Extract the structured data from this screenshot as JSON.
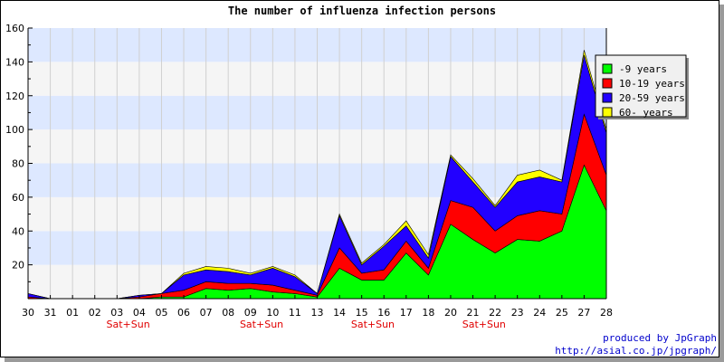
{
  "chart_data": {
    "type": "area",
    "stacked": true,
    "title": "The number of influenza infection persons",
    "xlabel": "",
    "ylabel": "",
    "ylim": [
      0,
      160
    ],
    "yticks": [
      20,
      40,
      60,
      80,
      100,
      120,
      140,
      160
    ],
    "grid": true,
    "legend_position": "top-right",
    "x": [
      "30",
      "31",
      "01",
      "02",
      "03",
      "04",
      "05",
      "06",
      "07",
      "08",
      "09",
      "10",
      "11",
      "13",
      "14",
      "15",
      "16",
      "17",
      "18",
      "20",
      "21",
      "22",
      "23",
      "24",
      "25",
      "27",
      "28"
    ],
    "annotations": [
      {
        "label": "Sat+Sun",
        "between": [
          "03",
          "04"
        ]
      },
      {
        "label": "Sat+Sun",
        "between": [
          "09",
          "10"
        ]
      },
      {
        "label": "Sat+Sun",
        "between": [
          "15",
          "16"
        ]
      },
      {
        "label": "Sat+Sun",
        "between": [
          "21",
          "22"
        ]
      }
    ],
    "series": [
      {
        "name": "-9 years",
        "color": "#00ff00",
        "values": [
          0,
          0,
          0,
          0,
          0,
          0,
          1,
          1,
          6,
          5,
          6,
          4,
          3,
          1,
          18,
          11,
          11,
          27,
          14,
          44,
          35,
          27,
          35,
          34,
          40,
          79,
          52
        ]
      },
      {
        "name": "10-19 years",
        "color": "#ff0000",
        "values": [
          1,
          0,
          0,
          0,
          0,
          1,
          2,
          4,
          4,
          4,
          3,
          4,
          2,
          1,
          12,
          4,
          6,
          7,
          4,
          14,
          19,
          13,
          14,
          18,
          10,
          30,
          21
        ]
      },
      {
        "name": "20-59 years",
        "color": "#2200ff",
        "values": [
          2,
          0,
          0,
          0,
          0,
          1,
          0,
          9,
          7,
          7,
          5,
          10,
          8,
          1,
          19,
          5,
          14,
          9,
          6,
          26,
          15,
          14,
          20,
          20,
          19,
          35,
          25
        ]
      },
      {
        "name": "60- years",
        "color": "#ffff00",
        "values": [
          0,
          0,
          0,
          0,
          0,
          0,
          0,
          1,
          2,
          2,
          1,
          1,
          1,
          0,
          1,
          1,
          1,
          3,
          2,
          1,
          2,
          1,
          4,
          4,
          1,
          3,
          2
        ]
      }
    ]
  },
  "credits": {
    "line1": "produced by JpGraph",
    "line2": "http://asial.co.jp/jpgraph/"
  },
  "colors": {
    "band_light": "#f5f5f5",
    "band_blue": "#dde8ff"
  }
}
